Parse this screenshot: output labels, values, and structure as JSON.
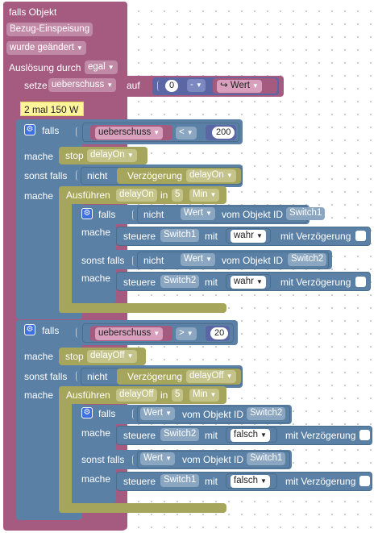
{
  "trigger": {
    "header": "falls Objekt",
    "object": "Bezug-Einspeisung",
    "event": "wurde geändert",
    "trigger_label": "Auslösung durch",
    "trigger_value": "egal"
  },
  "setvar": {
    "label": "setze",
    "var": "ueberschuss",
    "to": "auf",
    "value": "0",
    "op": "-",
    "arrow": "↪",
    "expr": "Wert"
  },
  "comment": "2 mal 150 W",
  "if1": {
    "falls": "falls",
    "var": "ueberschuss",
    "op": "<",
    "num": "200",
    "mache": "mache",
    "stop": "stop",
    "timer": "delayOn",
    "sonst": "sonst falls",
    "nicht": "nicht",
    "verz": "Verzögerung",
    "verz_timer": "delayOn",
    "mache2": "mache",
    "ausf": "Ausführen",
    "ausf_timer": "delayOn",
    "in": "in",
    "n": "5",
    "unit": "Min",
    "inner": {
      "falls": "falls",
      "nicht": "nicht",
      "wert": "Wert",
      "vom": "vom Objekt ID",
      "id1": "Switch1",
      "mache": "mache",
      "steuere": "steuere",
      "sw1": "Switch1",
      "mit": "mit",
      "val1": "wahr",
      "delay": "mit Verzögerung",
      "sonst": "sonst falls",
      "nicht2": "nicht",
      "wert2": "Wert",
      "vom2": "vom Objekt ID",
      "id2": "Switch2",
      "mache2": "mache",
      "steuere2": "steuere",
      "sw2": "Switch2",
      "mit2": "mit",
      "val2": "wahr",
      "delay2": "mit Verzögerung"
    }
  },
  "if2": {
    "falls": "falls",
    "var": "ueberschuss",
    "op": ">",
    "num": "20",
    "mache": "mache",
    "stop": "stop",
    "timer": "delayOff",
    "sonst": "sonst falls",
    "nicht": "nicht",
    "verz": "Verzögerung",
    "verz_timer": "delayOff",
    "mache2": "mache",
    "ausf": "Ausführen",
    "ausf_timer": "delayOff",
    "in": "in",
    "n": "5",
    "unit": "Min",
    "inner": {
      "falls": "falls",
      "wert": "Wert",
      "vom": "vom Objekt ID",
      "id1": "Switch2",
      "mache": "mache",
      "steuere": "steuere",
      "sw1": "Switch2",
      "mit": "mit",
      "val1": "falsch",
      "delay": "mit Verzögerung",
      "sonst": "sonst falls",
      "wert2": "Wert",
      "vom2": "vom Objekt ID",
      "id2": "Switch1",
      "mache2": "mache",
      "steuere2": "steuere",
      "sw2": "Switch1",
      "mit2": "mit",
      "val2": "falsch",
      "delay2": "mit Verzögerung"
    }
  },
  "colors": {
    "trigger": "#a55b80",
    "logic": "#5b80a5",
    "timer": "#a5a55b",
    "comment": "#fef49c"
  }
}
